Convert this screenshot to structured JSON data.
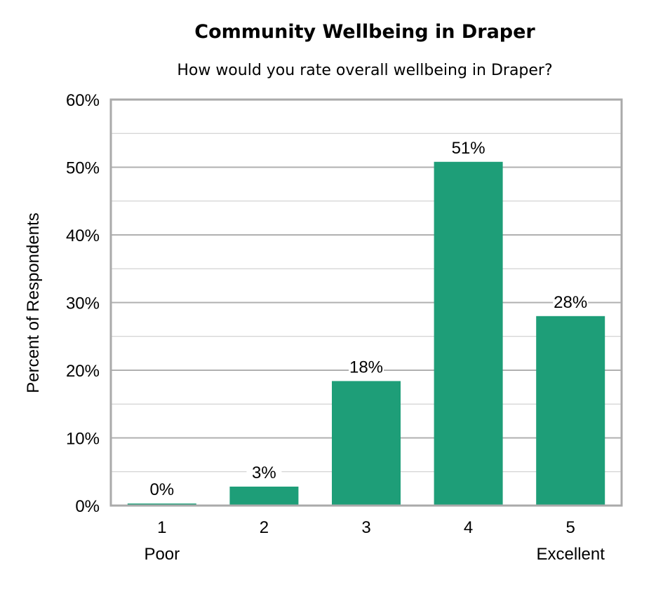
{
  "chart_data": {
    "type": "bar",
    "title": "Community Wellbeing in Draper",
    "subtitle": "How would you rate overall wellbeing in Draper?",
    "xlabel": "",
    "ylabel": "Percent of Respondents",
    "categories": [
      "1\nPoor",
      "2",
      "3",
      "4",
      "5\nExcellent"
    ],
    "values": [
      0.3,
      2.8,
      18.4,
      50.8,
      28.0
    ],
    "data_labels": [
      "0%",
      "3%",
      "18%",
      "51%",
      "28%"
    ],
    "ylim": [
      0,
      60
    ],
    "yticks": [
      "0%",
      "10%",
      "20%",
      "30%",
      "40%",
      "50%",
      "60%"
    ],
    "grid": true,
    "bar_color": "#1e9e78"
  }
}
